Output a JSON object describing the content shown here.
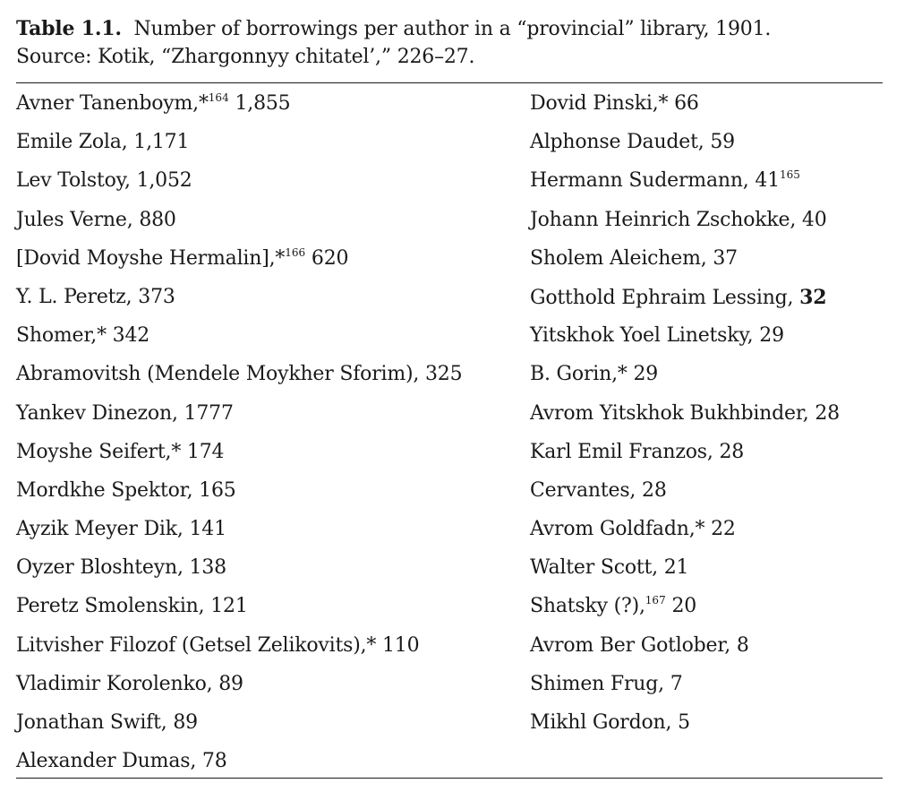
{
  "caption": {
    "label": "Table 1.1.",
    "title": "Number of borrowings per author in a “provincial” library, 1901.",
    "source": "Source: Kotik, “Zhargonnyy chitatel’,” 226–27."
  },
  "left_column": [
    {
      "name": "Avner Tanenboym,",
      "star": "*",
      "note": "164",
      "count": "1,855"
    },
    {
      "name": "Emile Zola,",
      "count": "1,171"
    },
    {
      "name": "Lev Tolstoy,",
      "count": "1,052"
    },
    {
      "name": "Jules Verne,",
      "count": "880"
    },
    {
      "name": "[Dovid Moyshe Hermalin],",
      "star": "*",
      "note": "166",
      "count": "620"
    },
    {
      "name": "Y. L. Peretz,",
      "count": "373"
    },
    {
      "name": "Shomer,",
      "star": "*",
      "count": "342"
    },
    {
      "name": "Abramovitsh (Mendele Moykher Sforim),",
      "count": "325"
    },
    {
      "name": "Yankev Dinezon,",
      "count": "1777"
    },
    {
      "name": "Moyshe Seifert,",
      "star": "*",
      "count": "174"
    },
    {
      "name": "Mordkhe Spektor,",
      "count": "165"
    },
    {
      "name": "Ayzik Meyer Dik,",
      "count": "141"
    },
    {
      "name": "Oyzer Bloshteyn,",
      "count": "138"
    },
    {
      "name": "Peretz Smolenskin,",
      "count": "121"
    },
    {
      "name": "Litvisher Filozof (Getsel Zelikovits),",
      "star": "*",
      "count": "110"
    },
    {
      "name": "Vladimir Korolenko,",
      "count": "89"
    },
    {
      "name": "Jonathan Swift,",
      "count": "89"
    },
    {
      "name": "Alexander Dumas,",
      "count": "78"
    }
  ],
  "right_column": [
    {
      "name": "Dovid Pinski,",
      "star": "*",
      "count": "66"
    },
    {
      "name": "Alphonse Daudet,",
      "count": "59"
    },
    {
      "name": "Hermann Sudermann,",
      "count": "41",
      "note_after": "165"
    },
    {
      "name": "Johann Heinrich Zschokke,",
      "count": "40"
    },
    {
      "name": "Sholem Aleichem,",
      "count": "37"
    },
    {
      "name": "Gotthold Ephraim Lessing,",
      "count": "32",
      "count_bold": true
    },
    {
      "name": "Yitskhok Yoel Linetsky,",
      "count": "29"
    },
    {
      "name": "B. Gorin,",
      "star": "*",
      "count": "29"
    },
    {
      "name": "Avrom Yitskhok Bukhbinder,",
      "count": "28"
    },
    {
      "name": "Karl Emil Franzos,",
      "count": "28"
    },
    {
      "name": "Cervantes,",
      "count": "28"
    },
    {
      "name": "Avrom Goldfadn,",
      "star": "*",
      "count": "22"
    },
    {
      "name": "Walter Scott,",
      "count": "21"
    },
    {
      "name": "Shatsky (?),",
      "note": "167",
      "count": "20"
    },
    {
      "name": "Avrom Ber Gotlober,",
      "count": "8"
    },
    {
      "name": "Shimen Frug,",
      "count": "7"
    },
    {
      "name": "Mikhl Gordon,",
      "count": "5"
    }
  ]
}
